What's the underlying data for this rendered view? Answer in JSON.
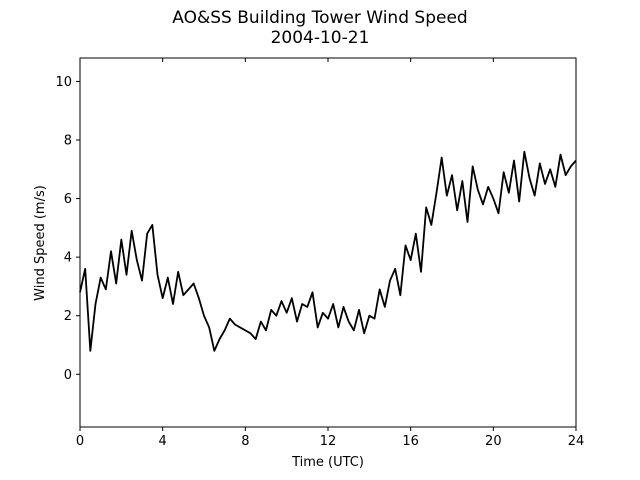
{
  "chart_data": {
    "type": "line",
    "title": [
      "AO&SS Building Tower Wind Speed",
      "2004-10-21"
    ],
    "xlabel": "Time (UTC)",
    "ylabel": "Wind Speed (m/s)",
    "xlim": [
      0,
      24
    ],
    "ylim": [
      -1.8,
      10.8
    ],
    "xticks": [
      0,
      4,
      8,
      12,
      16,
      20,
      24
    ],
    "yticks": [
      0,
      2,
      4,
      6,
      8,
      10
    ],
    "grid": false,
    "line_color": "#000000",
    "series": [
      {
        "x": [
          0.0,
          0.25,
          0.5,
          0.75,
          1.0,
          1.25,
          1.5,
          1.75,
          2.0,
          2.25,
          2.5,
          2.75,
          3.0,
          3.25,
          3.5,
          3.75,
          4.0,
          4.25,
          4.5,
          4.75,
          5.0,
          5.25,
          5.5,
          5.75,
          6.0,
          6.25,
          6.5,
          6.75,
          7.0,
          7.25,
          7.5,
          7.75,
          8.0,
          8.25,
          8.5,
          8.75,
          9.0,
          9.25,
          9.5,
          9.75,
          10.0,
          10.25,
          10.5,
          10.75,
          11.0,
          11.25,
          11.5,
          11.75,
          12.0,
          12.25,
          12.5,
          12.75,
          13.0,
          13.25,
          13.5,
          13.75,
          14.0,
          14.25,
          14.5,
          14.75,
          15.0,
          15.25,
          15.5,
          15.75,
          16.0,
          16.25,
          16.5,
          16.75,
          17.0,
          17.25,
          17.5,
          17.75,
          18.0,
          18.25,
          18.5,
          18.75,
          19.0,
          19.25,
          19.5,
          19.75,
          20.0,
          20.25,
          20.5,
          20.75,
          21.0,
          21.25,
          21.5,
          21.75,
          22.0,
          22.25,
          22.5,
          22.75,
          23.0,
          23.25,
          23.5,
          23.75,
          24.0
        ],
        "values": [
          2.8,
          3.6,
          0.8,
          2.4,
          3.3,
          2.9,
          4.2,
          3.1,
          4.6,
          3.4,
          4.9,
          3.9,
          3.2,
          4.8,
          5.1,
          3.4,
          2.6,
          3.3,
          2.4,
          3.5,
          2.7,
          2.9,
          3.1,
          2.6,
          2.0,
          1.6,
          0.8,
          1.2,
          1.5,
          1.9,
          1.7,
          1.6,
          1.5,
          1.4,
          1.2,
          1.8,
          1.5,
          2.2,
          2.0,
          2.5,
          2.1,
          2.6,
          1.8,
          2.4,
          2.3,
          2.8,
          1.6,
          2.1,
          1.9,
          2.4,
          1.6,
          2.3,
          1.8,
          1.5,
          2.2,
          1.4,
          2.0,
          1.9,
          2.9,
          2.3,
          3.2,
          3.6,
          2.7,
          4.4,
          3.9,
          4.8,
          3.5,
          5.7,
          5.1,
          6.2,
          7.4,
          6.1,
          6.8,
          5.6,
          6.6,
          5.2,
          7.1,
          6.3,
          5.8,
          6.4,
          6.0,
          5.5,
          6.9,
          6.2,
          7.3,
          5.9,
          7.6,
          6.7,
          6.1,
          7.2,
          6.5,
          7.0,
          6.4,
          7.5,
          6.8,
          7.1,
          7.3
        ]
      }
    ]
  }
}
